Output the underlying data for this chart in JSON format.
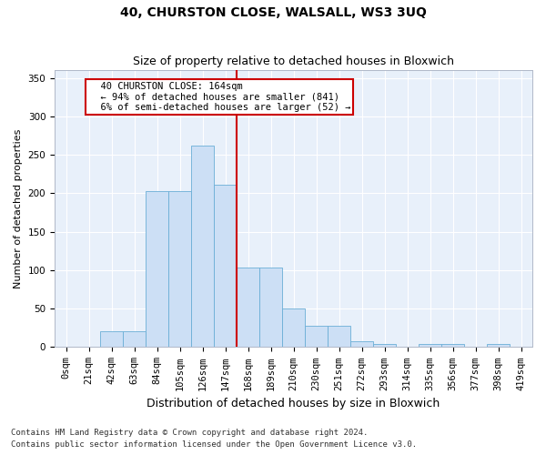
{
  "title": "40, CHURSTON CLOSE, WALSALL, WS3 3UQ",
  "subtitle": "Size of property relative to detached houses in Bloxwich",
  "xlabel": "Distribution of detached houses by size in Bloxwich",
  "ylabel": "Number of detached properties",
  "bin_labels": [
    "0sqm",
    "21sqm",
    "42sqm",
    "63sqm",
    "84sqm",
    "105sqm",
    "126sqm",
    "147sqm",
    "168sqm",
    "189sqm",
    "210sqm",
    "230sqm",
    "251sqm",
    "272sqm",
    "293sqm",
    "314sqm",
    "335sqm",
    "356sqm",
    "377sqm",
    "398sqm",
    "419sqm"
  ],
  "bar_values": [
    1,
    0,
    21,
    21,
    203,
    203,
    262,
    211,
    104,
    104,
    50,
    28,
    28,
    8,
    4,
    1,
    4,
    4,
    1,
    4,
    1
  ],
  "bar_color": "#ccdff5",
  "bar_edge_color": "#6aaed6",
  "vline_color": "#cc0000",
  "vline_xindex": 8,
  "annotation_text_line1": "  40 CHURSTON CLOSE: 164sqm",
  "annotation_text_line2": "  ← 94% of detached houses are smaller (841)",
  "annotation_text_line3": "  6% of semi-detached houses are larger (52) →",
  "annotation_box_color": "#ffffff",
  "annotation_box_edge_color": "#cc0000",
  "ylim": [
    0,
    360
  ],
  "yticks": [
    0,
    50,
    100,
    150,
    200,
    250,
    300,
    350
  ],
  "background_color": "#e8f0fa",
  "grid_color": "#ffffff",
  "footer1": "Contains HM Land Registry data © Crown copyright and database right 2024.",
  "footer2": "Contains public sector information licensed under the Open Government Licence v3.0.",
  "title_fontsize": 10,
  "subtitle_fontsize": 9,
  "ylabel_fontsize": 8,
  "xlabel_fontsize": 9,
  "tick_fontsize": 7.5,
  "annot_fontsize": 7.5,
  "footer_fontsize": 6.5
}
